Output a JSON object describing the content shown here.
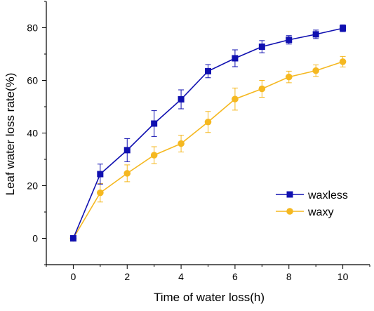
{
  "chart_data": {
    "type": "line",
    "xlabel": "Time of water loss(h)",
    "ylabel": "Leaf water loss rate(%)",
    "x": [
      0,
      1,
      2,
      3,
      4,
      5,
      6,
      7,
      8,
      9,
      10
    ],
    "xlim": [
      -1,
      11
    ],
    "ylim": [
      -10,
      90
    ],
    "xticks": [
      0,
      2,
      4,
      6,
      8,
      10
    ],
    "yticks": [
      0,
      20,
      40,
      60,
      80
    ],
    "grid": false,
    "legend_position": "right",
    "series": [
      {
        "name": "waxless",
        "color": "#1010b0",
        "marker": "square",
        "values": [
          0,
          24.4,
          33.5,
          43.6,
          52.8,
          63.5,
          68.4,
          72.8,
          75.4,
          77.5,
          79.8
        ],
        "errors": [
          0,
          3.8,
          4.4,
          4.9,
          3.6,
          2.5,
          3.2,
          2.3,
          1.6,
          1.6,
          1.3
        ]
      },
      {
        "name": "waxy",
        "color": "#f5b820",
        "marker": "circle",
        "values": [
          0,
          17.3,
          24.7,
          31.6,
          36.0,
          44.2,
          52.9,
          56.8,
          61.3,
          63.7,
          67.1
        ],
        "errors": [
          0,
          3.5,
          3.2,
          3.2,
          3.2,
          4.0,
          4.2,
          3.2,
          2.2,
          2.2,
          2.0
        ]
      }
    ]
  }
}
